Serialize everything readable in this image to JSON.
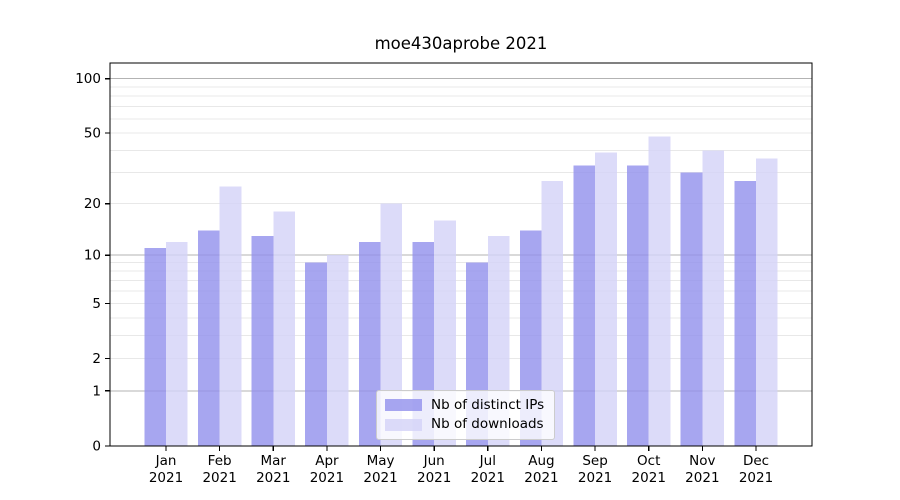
{
  "chart_data": {
    "type": "bar",
    "title": "moe430aprobe 2021",
    "categories": [
      "Jan",
      "Feb",
      "Mar",
      "Apr",
      "May",
      "Jun",
      "Jul",
      "Aug",
      "Sep",
      "Oct",
      "Nov",
      "Dec"
    ],
    "x_sublabel": "2021",
    "series": [
      {
        "name": "Nb of distinct IPs",
        "color": "#9190ec",
        "opacity": 0.8,
        "values": [
          11,
          14,
          13,
          9,
          12,
          12,
          9,
          14,
          33,
          33,
          30,
          27
        ]
      },
      {
        "name": "Nb of downloads",
        "color": "#d3d2f7",
        "opacity": 0.8,
        "values": [
          12,
          25,
          18,
          10,
          20,
          16,
          13,
          27,
          39,
          48,
          40,
          36
        ]
      }
    ],
    "y_scale": "log1p",
    "y_ticks": [
      0,
      1,
      2,
      5,
      10,
      20,
      50,
      100
    ],
    "y_major_gridlines": [
      1,
      10,
      100
    ],
    "ylim": [
      0,
      122
    ],
    "grid": {
      "major_color": "#b3b3b3",
      "minor_color": "#e8e8e8"
    },
    "axis_color": "#000000",
    "legend_position": "lower center"
  }
}
